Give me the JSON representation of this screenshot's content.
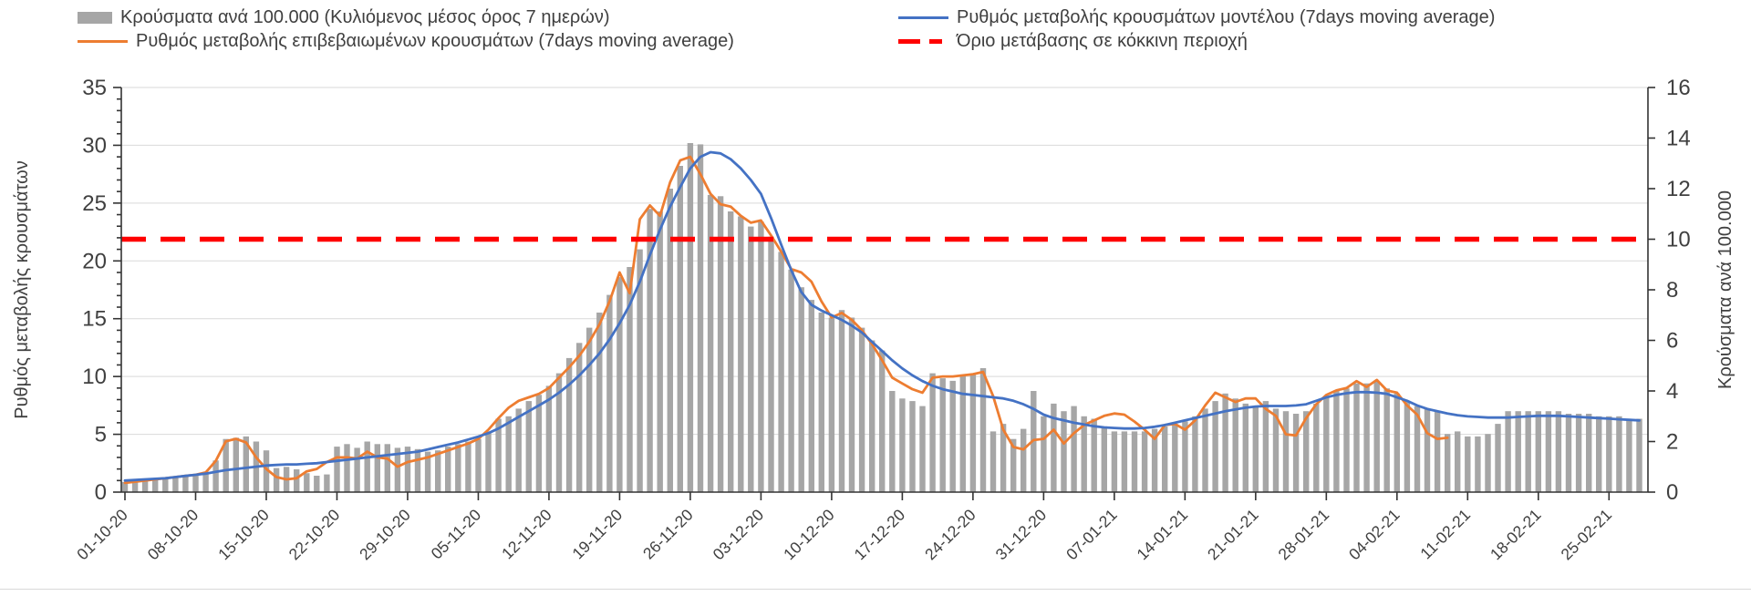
{
  "legend": [
    {
      "label": "Κρούσματα ανά 100.000 (Κυλιόμενος μέσος όρος 7 ημερών)",
      "marker": "bar-swatch",
      "color": "#A6A6A6"
    },
    {
      "label": "Ρυθμός μεταβολής κρουσμάτων μοντέλου (7days moving average)",
      "marker": "line-swatch",
      "color": "#4472C4"
    },
    {
      "label": "Ρυθμός μεταβολής επιβεβαιωμένων κρουσμάτων (7days moving average)",
      "marker": "line-swatch",
      "color": "#ED7D31"
    },
    {
      "label": "Όριο μετάβασης σε κόκκινη περιοχή",
      "marker": "dash-swatch",
      "color": "#FF0000"
    }
  ],
  "chart_data": {
    "type": "combo",
    "title": "",
    "left_axis": {
      "label": "Ρυθμός μεταβολής κρουσμάτων",
      "min": 0,
      "max": 35,
      "tick_step": 5,
      "minor_step": 1,
      "ticks": [
        0,
        5,
        10,
        15,
        20,
        25,
        30,
        35
      ]
    },
    "right_axis": {
      "label": "Κρούσματα ανά 100.000",
      "min": 0,
      "max": 16,
      "tick_step": 2,
      "ticks": [
        0,
        2,
        4,
        6,
        8,
        10,
        12,
        14,
        16
      ]
    },
    "x_axis": {
      "tick_labels": [
        "01-10-20",
        "08-10-20",
        "15-10-20",
        "22-10-20",
        "29-10-20",
        "05-11-20",
        "12-11-20",
        "19-11-20",
        "26-11-20",
        "03-12-20",
        "10-12-20",
        "17-12-20",
        "24-12-20",
        "31-12-20",
        "07-01-21",
        "14-01-21",
        "21-01-21",
        "28-01-21",
        "04-02-21",
        "11-02-21",
        "18-02-21",
        "25-02-21"
      ],
      "days_per_tick": 7,
      "days_total": 151,
      "start_date": "01-10-20",
      "end_date": "28-02-21"
    },
    "threshold": {
      "name": "Όριο μετάβασης σε κόκκινη περιοχή",
      "axis": "right",
      "value": 10,
      "color": "#FF0000",
      "style": "dashed"
    },
    "grid": "horizontal, at left-axis major ticks",
    "series": [
      {
        "name": "Κρούσματα ανά 100.000 (Κυλιόμενος μέσος όρος 7 ημερών)",
        "type": "bar",
        "axis": "right",
        "color": "#A6A6A6",
        "values": [
          0.4,
          0.45,
          0.5,
          0.5,
          0.55,
          0.6,
          0.65,
          0.7,
          0.8,
          1.25,
          2.1,
          2.15,
          2.2,
          2.0,
          1.65,
          0.95,
          1.0,
          0.9,
          0.75,
          0.65,
          0.7,
          1.8,
          1.9,
          1.75,
          2.0,
          1.9,
          1.9,
          1.75,
          1.8,
          1.7,
          1.6,
          1.65,
          1.8,
          1.9,
          2.0,
          2.1,
          2.4,
          2.9,
          3.0,
          3.3,
          3.6,
          3.85,
          4.2,
          4.7,
          5.3,
          5.9,
          6.5,
          7.1,
          7.8,
          8.5,
          8.9,
          9.6,
          11.2,
          11.1,
          12.0,
          12.9,
          13.8,
          13.75,
          11.75,
          11.7,
          11.1,
          10.9,
          10.5,
          10.7,
          10.1,
          9.5,
          8.8,
          8.1,
          7.6,
          7.1,
          6.9,
          7.2,
          6.9,
          6.5,
          6.0,
          5.6,
          4.0,
          3.7,
          3.6,
          3.4,
          4.7,
          4.5,
          4.4,
          4.6,
          4.7,
          4.9,
          2.4,
          2.7,
          2.1,
          2.5,
          4.0,
          3.0,
          3.5,
          3.2,
          3.4,
          3.0,
          2.9,
          2.6,
          2.4,
          2.4,
          2.4,
          2.4,
          2.5,
          2.6,
          2.7,
          2.8,
          3.0,
          3.3,
          3.6,
          3.9,
          3.7,
          3.5,
          3.4,
          3.6,
          3.3,
          3.2,
          3.1,
          3.2,
          3.5,
          3.8,
          4.0,
          4.1,
          4.3,
          4.3,
          4.4,
          4.1,
          3.9,
          3.6,
          3.4,
          3.3,
          3.2,
          2.3,
          2.4,
          2.2,
          2.2,
          2.3,
          2.7,
          3.2,
          3.2,
          3.2,
          3.2,
          3.2,
          3.2,
          3.1,
          3.1,
          3.1,
          3.0,
          3.0,
          3.0,
          2.9,
          2.9
        ]
      },
      {
        "name": "Ρυθμός μεταβολής επιβεβαιωμένων κρουσμάτων (7days moving average)",
        "type": "line",
        "axis": "left",
        "color": "#ED7D31",
        "values": [
          0.8,
          0.9,
          1.0,
          1.1,
          1.2,
          1.3,
          1.4,
          1.5,
          1.7,
          2.7,
          4.4,
          4.6,
          4.3,
          3.0,
          2.0,
          1.3,
          1.1,
          1.2,
          1.8,
          2.0,
          2.6,
          3.0,
          3.0,
          2.9,
          3.5,
          3.0,
          2.9,
          2.2,
          2.6,
          2.8,
          3.0,
          3.3,
          3.6,
          3.9,
          4.2,
          4.6,
          5.4,
          6.4,
          7.3,
          7.9,
          8.2,
          8.5,
          9.0,
          9.9,
          10.8,
          11.8,
          13.0,
          14.5,
          16.5,
          19.0,
          17.2,
          23.6,
          24.8,
          23.9,
          26.8,
          28.7,
          29.0,
          27.5,
          25.8,
          24.9,
          24.7,
          23.9,
          23.3,
          23.5,
          22.2,
          20.8,
          19.3,
          19.0,
          18.2,
          16.5,
          15.1,
          15.5,
          14.9,
          14.0,
          12.8,
          11.4,
          9.9,
          9.4,
          8.9,
          8.6,
          9.9,
          10.0,
          10.0,
          10.1,
          10.2,
          10.4,
          8.3,
          5.4,
          3.9,
          3.7,
          4.5,
          4.6,
          5.4,
          4.2,
          5.1,
          5.8,
          6.2,
          6.6,
          6.8,
          6.7,
          6.1,
          5.4,
          4.6,
          5.8,
          5.9,
          5.4,
          6.2,
          7.5,
          8.6,
          8.2,
          7.8,
          8.1,
          8.1,
          7.2,
          6.6,
          5.0,
          4.9,
          6.4,
          7.6,
          8.4,
          8.8,
          9.0,
          9.6,
          9.1,
          9.7,
          8.8,
          8.6,
          7.5,
          6.7,
          5.1,
          4.6,
          4.7
        ]
      },
      {
        "name": "Ρυθμός μεταβολής κρουσμάτων μοντέλου (7days moving average)",
        "type": "line",
        "axis": "left",
        "color": "#4472C4",
        "values": [
          1.0,
          1.05,
          1.1,
          1.15,
          1.2,
          1.3,
          1.4,
          1.5,
          1.6,
          1.75,
          1.9,
          2.0,
          2.1,
          2.2,
          2.3,
          2.35,
          2.4,
          2.4,
          2.45,
          2.5,
          2.6,
          2.7,
          2.8,
          2.9,
          3.0,
          3.1,
          3.2,
          3.3,
          3.4,
          3.5,
          3.7,
          3.9,
          4.1,
          4.3,
          4.55,
          4.8,
          5.1,
          5.5,
          6.0,
          6.5,
          7.0,
          7.5,
          8.0,
          8.6,
          9.3,
          10.1,
          11.0,
          12.0,
          13.2,
          14.6,
          16.2,
          18.2,
          20.5,
          22.7,
          24.7,
          26.4,
          28.0,
          29.0,
          29.4,
          29.3,
          28.8,
          28.0,
          27.0,
          25.8,
          23.7,
          21.4,
          19.2,
          17.3,
          16.2,
          15.7,
          15.3,
          14.9,
          14.4,
          13.8,
          13.0,
          12.2,
          11.4,
          10.7,
          10.1,
          9.6,
          9.2,
          8.9,
          8.7,
          8.5,
          8.4,
          8.3,
          8.2,
          8.1,
          7.9,
          7.6,
          7.2,
          6.7,
          6.4,
          6.2,
          6.0,
          5.85,
          5.7,
          5.6,
          5.55,
          5.5,
          5.5,
          5.55,
          5.65,
          5.8,
          6.0,
          6.2,
          6.4,
          6.6,
          6.8,
          7.0,
          7.15,
          7.3,
          7.4,
          7.45,
          7.45,
          7.45,
          7.5,
          7.6,
          7.9,
          8.2,
          8.4,
          8.55,
          8.65,
          8.65,
          8.6,
          8.5,
          8.2,
          7.9,
          7.5,
          7.2,
          7.0,
          6.8,
          6.65,
          6.55,
          6.5,
          6.45,
          6.45,
          6.45,
          6.5,
          6.55,
          6.6,
          6.6,
          6.6,
          6.55,
          6.5,
          6.45,
          6.4,
          6.35,
          6.3,
          6.25,
          6.2
        ]
      }
    ],
    "colors": {
      "grid": "#D9D9D9",
      "axis": "#333333",
      "tick_text": "#404040"
    }
  }
}
